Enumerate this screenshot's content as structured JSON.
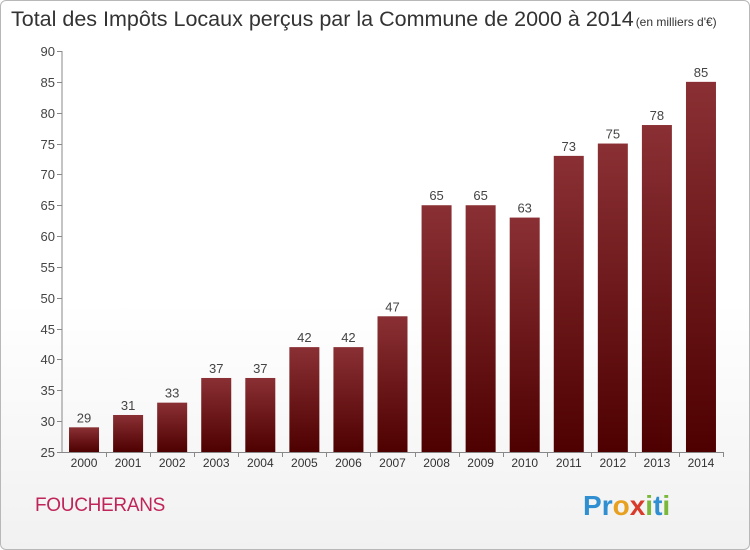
{
  "title": {
    "main": "Total des Impôts Locaux perçus par la Commune de 2000 à 2014",
    "unit": "(en milliers d'€)"
  },
  "commune": "FOUCHERANS",
  "logo": {
    "letters": [
      "P",
      "r",
      "o",
      "x",
      "i",
      "t",
      "i"
    ],
    "colors": [
      "#2f8fd1",
      "#2f8fd1",
      "#e8a020",
      "#d93b2b",
      "#7ab83a",
      "#2f8fd1",
      "#7ab83a"
    ]
  },
  "colors": {
    "bar_top": "#8a3034",
    "bar_bottom": "#4e0000",
    "axis": "#888888",
    "grid": "#cfcfcf"
  },
  "chart_data": {
    "type": "bar",
    "categories": [
      "2000",
      "2001",
      "2002",
      "2003",
      "2004",
      "2005",
      "2006",
      "2007",
      "2008",
      "2009",
      "2010",
      "2011",
      "2012",
      "2013",
      "2014"
    ],
    "values": [
      29,
      31,
      33,
      37,
      37,
      42,
      42,
      47,
      65,
      65,
      63,
      73,
      75,
      78,
      85
    ],
    "title": "Total des Impôts Locaux perçus par la Commune de 2000 à 2014",
    "xlabel": "",
    "ylabel": "",
    "ylim": [
      25,
      90
    ],
    "yticks": [
      25,
      30,
      35,
      40,
      45,
      50,
      55,
      60,
      65,
      70,
      75,
      80,
      85,
      90
    ],
    "grid": false
  }
}
